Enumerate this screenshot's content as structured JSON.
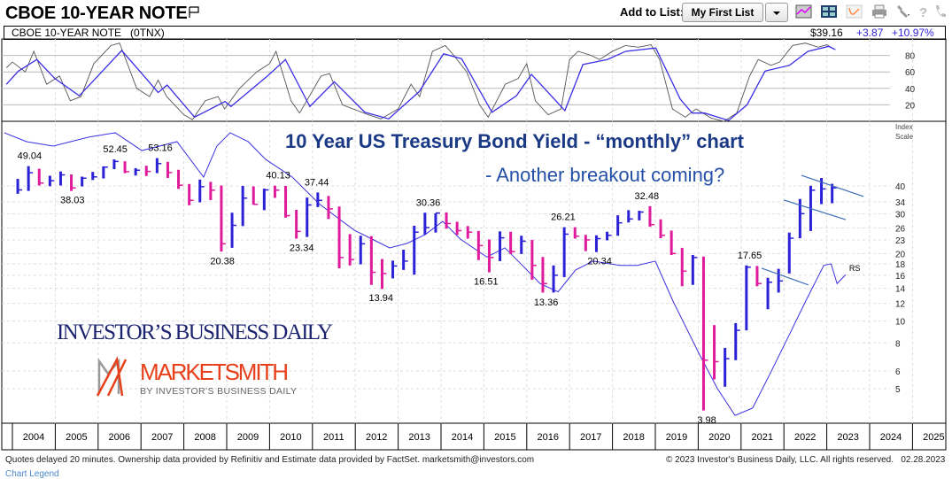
{
  "header": {
    "title": "CBOE 10-YEAR NOTE",
    "add_to_list_label": "Add to List:",
    "list_button": "My First List",
    "toolbar_icons": [
      "chart-icon",
      "layout-grid-icon",
      "indicator-icon",
      "print-icon",
      "wrench-icon",
      "help-icon",
      "phone-icon"
    ]
  },
  "quote": {
    "name": "CBOE 10-YEAR NOTE   (0TNX)",
    "price": "$39.16",
    "change": "+3.87",
    "change_pct": "+10.97%"
  },
  "annotation": {
    "headline": "10 Year US Treasury Bond Yield - “monthly” chart",
    "subline": "- Another breakout coming?"
  },
  "logos": {
    "ibd": "INVESTOR’S BUSINESS DAILY",
    "marketsmith": "MARKETSMITH",
    "marketsmith_tag": "BY INVESTOR’S BUSINESS DAILY"
  },
  "footer": {
    "disclaimer": "Quotes delayed 20 minutes. Ownership data provided by Refinitiv and Estimate data provided by FactSet. marketsmith@investors.com",
    "copyright": "© 2023 Investor's Business Daily, LLC. All rights reserved.   02.28.2023",
    "legend_link": "Chart Legend"
  },
  "colors": {
    "up": "#2b22d8",
    "down": "#e01a9c",
    "rs": "#3a2fe0",
    "osc_fast": "#555555",
    "osc_slow": "#3b2fe6",
    "trendline": "#3d6bb5",
    "title": "#1b3a86"
  },
  "chart_data": {
    "type": "bar",
    "subtype": "ohlc-log",
    "x_ticks": [
      "2004",
      "2005",
      "2006",
      "2007",
      "2008",
      "2009",
      "2010",
      "2011",
      "2012",
      "2013",
      "2014",
      "2015",
      "2016",
      "2017",
      "2018",
      "2019",
      "2020",
      "2021",
      "2022",
      "2023",
      "2024",
      "2025"
    ],
    "y_scale": "log",
    "y_axis_title": [
      "Index",
      "Scale"
    ],
    "y_ticks": [
      40,
      34,
      30,
      26,
      23,
      20,
      18,
      16,
      14,
      12,
      10,
      8,
      6,
      5
    ],
    "grid": true,
    "periods": [
      "2004Q1",
      "2004Q2",
      "2004Q3",
      "2004Q4",
      "2005Q1",
      "2005Q2",
      "2005Q3",
      "2005Q4",
      "2006Q1",
      "2006Q2",
      "2006Q3",
      "2006Q4",
      "2007Q1",
      "2007Q2",
      "2007Q3",
      "2007Q4",
      "2008Q1",
      "2008Q2",
      "2008Q3",
      "2008Q4",
      "2009Q1",
      "2009Q2",
      "2009Q3",
      "2009Q4",
      "2010Q1",
      "2010Q2",
      "2010Q3",
      "2010Q4",
      "2011Q1",
      "2011Q2",
      "2011Q3",
      "2011Q4",
      "2012Q1",
      "2012Q2",
      "2012Q3",
      "2012Q4",
      "2013Q1",
      "2013Q2",
      "2013Q3",
      "2013Q4",
      "2014Q1",
      "2014Q2",
      "2014Q3",
      "2014Q4",
      "2015Q1",
      "2015Q2",
      "2015Q3",
      "2015Q4",
      "2016Q1",
      "2016Q2",
      "2016Q3",
      "2016Q4",
      "2017Q1",
      "2017Q2",
      "2017Q3",
      "2017Q4",
      "2018Q1",
      "2018Q2",
      "2018Q3",
      "2018Q4",
      "2019Q1",
      "2019Q2",
      "2019Q3",
      "2019Q4",
      "2020Q1",
      "2020Q2",
      "2020Q3",
      "2020Q4",
      "2021Q1",
      "2021Q2",
      "2021Q3",
      "2021Q4",
      "2022Q1",
      "2022Q2",
      "2022Q3",
      "2022Q4",
      "2023Q1"
    ],
    "hlc": [
      [
        43.0,
        36.9,
        38.4
      ],
      [
        49.0,
        38.0,
        45.8
      ],
      [
        47.7,
        40.2,
        41.2
      ],
      [
        44.4,
        39.9,
        42.2
      ],
      [
        46.4,
        40.2,
        44.8
      ],
      [
        45.0,
        38.0,
        39.2
      ],
      [
        44.0,
        39.8,
        43.3
      ],
      [
        46.2,
        42.5,
        43.9
      ],
      [
        48.9,
        43.2,
        48.5
      ],
      [
        52.5,
        47.5,
        51.4
      ],
      [
        51.5,
        45.6,
        46.3
      ],
      [
        48.0,
        44.5,
        47.0
      ],
      [
        49.2,
        44.3,
        46.4
      ],
      [
        53.2,
        45.6,
        50.3
      ],
      [
        51.2,
        43.4,
        45.9
      ],
      [
        47.2,
        38.8,
        40.3
      ],
      [
        40.8,
        32.8,
        34.5
      ],
      [
        42.7,
        33.8,
        39.7
      ],
      [
        41.7,
        34.6,
        38.3
      ],
      [
        40.2,
        20.4,
        22.1
      ],
      [
        30.4,
        21.2,
        26.7
      ],
      [
        40.0,
        26.5,
        35.3
      ],
      [
        39.8,
        33.0,
        33.1
      ],
      [
        38.9,
        31.2,
        38.4
      ],
      [
        40.1,
        35.4,
        38.3
      ],
      [
        40.0,
        28.9,
        29.5
      ],
      [
        31.3,
        23.3,
        25.1
      ],
      [
        35.5,
        23.7,
        32.9
      ],
      [
        37.4,
        32.2,
        34.5
      ],
      [
        36.1,
        28.5,
        31.6
      ],
      [
        32.4,
        17.2,
        19.2
      ],
      [
        24.4,
        17.7,
        18.8
      ],
      [
        24.0,
        17.9,
        22.1
      ],
      [
        23.9,
        14.5,
        16.5
      ],
      [
        18.9,
        13.9,
        16.3
      ],
      [
        18.6,
        15.5,
        17.6
      ],
      [
        20.8,
        16.9,
        18.5
      ],
      [
        26.6,
        16.1,
        24.9
      ],
      [
        30.4,
        24.3,
        26.1
      ],
      [
        30.2,
        24.8,
        30.3
      ],
      [
        30.5,
        25.8,
        27.2
      ],
      [
        27.7,
        24.2,
        25.3
      ],
      [
        26.5,
        23.3,
        24.9
      ],
      [
        25.2,
        18.7,
        21.7
      ],
      [
        23.1,
        16.5,
        19.2
      ],
      [
        25.1,
        18.5,
        23.5
      ],
      [
        25.0,
        19.9,
        20.4
      ],
      [
        24.0,
        19.9,
        22.7
      ],
      [
        23.0,
        15.3,
        17.7
      ],
      [
        19.3,
        13.4,
        14.7
      ],
      [
        17.7,
        13.4,
        16.0
      ],
      [
        26.2,
        15.7,
        24.4
      ],
      [
        26.2,
        23.3,
        23.9
      ],
      [
        24.2,
        20.5,
        23.0
      ],
      [
        24.1,
        20.3,
        23.3
      ],
      [
        25.0,
        22.9,
        24.1
      ],
      [
        29.6,
        24.0,
        27.4
      ],
      [
        31.2,
        27.5,
        28.5
      ],
      [
        31.0,
        28.1,
        30.6
      ],
      [
        32.5,
        26.3,
        26.9
      ],
      [
        28.4,
        23.4,
        24.1
      ],
      [
        25.3,
        19.7,
        20.0
      ],
      [
        21.2,
        14.3,
        16.7
      ],
      [
        19.7,
        14.5,
        19.2
      ],
      [
        19.4,
        4.0,
        6.7
      ],
      [
        9.6,
        5.5,
        6.6
      ],
      [
        7.6,
        5.1,
        6.8
      ],
      [
        9.8,
        6.7,
        9.1
      ],
      [
        17.7,
        9.1,
        17.4
      ],
      [
        17.6,
        14.3,
        14.7
      ],
      [
        15.6,
        11.3,
        14.9
      ],
      [
        17.1,
        13.4,
        15.1
      ],
      [
        24.8,
        16.3,
        23.4
      ],
      [
        35.0,
        23.4,
        30.1
      ],
      [
        40.1,
        25.2,
        38.3
      ],
      [
        43.4,
        33.2,
        38.8
      ],
      [
        40.9,
        33.5,
        39.2
      ]
    ],
    "value_labels": [
      {
        "text": "49.04",
        "year": 2004.4,
        "pos": "above"
      },
      {
        "text": "38.03",
        "year": 2005.4,
        "pos": "below"
      },
      {
        "text": "52.45",
        "year": 2006.4,
        "pos": "above"
      },
      {
        "text": "53.16",
        "year": 2007.45,
        "pos": "above"
      },
      {
        "text": "20.38",
        "year": 2008.9,
        "pos": "below"
      },
      {
        "text": "40.13",
        "year": 2010.2,
        "pos": "above"
      },
      {
        "text": "23.34",
        "year": 2010.75,
        "pos": "below"
      },
      {
        "text": "37.44",
        "year": 2011.1,
        "pos": "above"
      },
      {
        "text": "13.94",
        "year": 2012.6,
        "pos": "below"
      },
      {
        "text": "30.36",
        "year": 2013.7,
        "pos": "above"
      },
      {
        "text": "16.51",
        "year": 2015.05,
        "pos": "below"
      },
      {
        "text": "13.36",
        "year": 2016.45,
        "pos": "below"
      },
      {
        "text": "26.21",
        "year": 2016.85,
        "pos": "above"
      },
      {
        "text": "20.34",
        "year": 2017.7,
        "pos": "below"
      },
      {
        "text": "32.48",
        "year": 2018.8,
        "pos": "above"
      },
      {
        "text": "3.98",
        "year": 2020.2,
        "pos": "below"
      },
      {
        "text": "17.65",
        "year": 2021.2,
        "pos": "above"
      }
    ],
    "rs_line": {
      "label": "RS",
      "points": [
        [
          2003.81,
          69
        ],
        [
          2004.33,
          63
        ],
        [
          2004.95,
          60.2
        ],
        [
          2005.78,
          66
        ],
        [
          2006.4,
          69
        ],
        [
          2007.02,
          57.5
        ],
        [
          2007.84,
          63
        ],
        [
          2008.46,
          43.8
        ],
        [
          2008.77,
          60.2
        ],
        [
          2009.08,
          69
        ],
        [
          2009.5,
          63
        ],
        [
          2009.91,
          52.5
        ],
        [
          2010.53,
          43.8
        ],
        [
          2011.15,
          33.4
        ],
        [
          2011.56,
          29.1
        ],
        [
          2011.98,
          25.4
        ],
        [
          2012.39,
          23.2
        ],
        [
          2012.8,
          21.2
        ],
        [
          2013.21,
          22.2
        ],
        [
          2013.63,
          24.3
        ],
        [
          2014.04,
          27.8
        ],
        [
          2014.45,
          23.2
        ],
        [
          2015.07,
          19.3
        ],
        [
          2015.49,
          21.2
        ],
        [
          2015.9,
          17.7
        ],
        [
          2016.31,
          14.7
        ],
        [
          2016.73,
          13.5
        ],
        [
          2017.14,
          16.9
        ],
        [
          2017.55,
          18.5
        ],
        [
          2018.17,
          17.7
        ],
        [
          2018.58,
          17.7
        ],
        [
          2019.0,
          18.5
        ],
        [
          2019.41,
          12.3
        ],
        [
          2020.03,
          7.1
        ],
        [
          2020.45,
          5.0
        ],
        [
          2020.86,
          3.8
        ],
        [
          2021.27,
          4.1
        ],
        [
          2021.69,
          5.9
        ],
        [
          2022.1,
          8.5
        ],
        [
          2022.51,
          12.3
        ],
        [
          2022.93,
          17.7
        ],
        [
          2023.1,
          18.0
        ],
        [
          2023.24,
          14.7
        ],
        [
          2023.44,
          16.1
        ]
      ]
    },
    "trendlines": [
      [
        [
          2022.41,
          44.6
        ],
        [
          2023.86,
          35.9
        ]
      ],
      [
        [
          2022.0,
          34.6
        ],
        [
          2023.44,
          28.3
        ]
      ],
      [
        [
          2021.48,
          17.2
        ],
        [
          2022.57,
          14.5
        ]
      ]
    ],
    "oscillator": {
      "y_ticks": [
        80,
        60,
        40,
        20
      ],
      "ylim": [
        0,
        100
      ],
      "fast": [
        [
          2003.86,
          65
        ],
        [
          2004.0,
          72
        ],
        [
          2004.3,
          60
        ],
        [
          2004.5,
          85
        ],
        [
          2004.8,
          45
        ],
        [
          2005.1,
          55
        ],
        [
          2005.35,
          25
        ],
        [
          2005.6,
          30
        ],
        [
          2005.9,
          70
        ],
        [
          2006.3,
          92
        ],
        [
          2006.5,
          95
        ],
        [
          2006.9,
          40
        ],
        [
          2007.2,
          30
        ],
        [
          2007.4,
          50
        ],
        [
          2007.6,
          30
        ],
        [
          2008.0,
          8
        ],
        [
          2008.2,
          2
        ],
        [
          2008.5,
          25
        ],
        [
          2008.8,
          30
        ],
        [
          2008.95,
          15
        ],
        [
          2009.3,
          40
        ],
        [
          2009.7,
          60
        ],
        [
          2010.0,
          70
        ],
        [
          2010.15,
          85
        ],
        [
          2010.5,
          25
        ],
        [
          2010.7,
          10
        ],
        [
          2011.2,
          55
        ],
        [
          2011.4,
          58
        ],
        [
          2011.7,
          20
        ],
        [
          2012.3,
          8
        ],
        [
          2012.6,
          3
        ],
        [
          2013.0,
          15
        ],
        [
          2013.3,
          45
        ],
        [
          2013.5,
          30
        ],
        [
          2013.8,
          85
        ],
        [
          2014.1,
          92
        ],
        [
          2014.3,
          80
        ],
        [
          2014.6,
          60
        ],
        [
          2014.9,
          20
        ],
        [
          2015.1,
          5
        ],
        [
          2015.5,
          45
        ],
        [
          2015.8,
          52
        ],
        [
          2016.0,
          70
        ],
        [
          2016.2,
          25
        ],
        [
          2016.5,
          8
        ],
        [
          2016.8,
          15
        ],
        [
          2017.0,
          75
        ],
        [
          2017.2,
          85
        ],
        [
          2017.5,
          80
        ],
        [
          2017.7,
          75
        ],
        [
          2018.0,
          85
        ],
        [
          2018.3,
          92
        ],
        [
          2018.6,
          90
        ],
        [
          2018.9,
          93
        ],
        [
          2019.1,
          75
        ],
        [
          2019.4,
          15
        ],
        [
          2019.7,
          5
        ],
        [
          2019.95,
          15
        ],
        [
          2020.3,
          4
        ],
        [
          2020.6,
          0
        ],
        [
          2020.9,
          10
        ],
        [
          2021.2,
          55
        ],
        [
          2021.4,
          75
        ],
        [
          2021.7,
          68
        ],
        [
          2021.9,
          72
        ],
        [
          2022.2,
          92
        ],
        [
          2022.5,
          95
        ],
        [
          2022.8,
          90
        ],
        [
          2023.0,
          93
        ],
        [
          2023.15,
          88
        ]
      ],
      "slow": [
        [
          2003.86,
          45
        ],
        [
          2004.14,
          61
        ],
        [
          2004.57,
          75
        ],
        [
          2004.99,
          52
        ],
        [
          2005.56,
          31
        ],
        [
          2006.12,
          62
        ],
        [
          2006.55,
          86
        ],
        [
          2007.12,
          52
        ],
        [
          2007.4,
          35
        ],
        [
          2007.61,
          44
        ],
        [
          2008.25,
          5
        ],
        [
          2008.96,
          24
        ],
        [
          2009.1,
          18
        ],
        [
          2009.95,
          55
        ],
        [
          2010.37,
          75
        ],
        [
          2010.94,
          18
        ],
        [
          2011.51,
          48
        ],
        [
          2012.22,
          11
        ],
        [
          2012.78,
          3
        ],
        [
          2013.49,
          36
        ],
        [
          2014.06,
          82
        ],
        [
          2014.48,
          76
        ],
        [
          2015.19,
          11
        ],
        [
          2015.76,
          31
        ],
        [
          2016.11,
          57
        ],
        [
          2016.89,
          13
        ],
        [
          2017.31,
          69
        ],
        [
          2017.88,
          75
        ],
        [
          2018.31,
          85
        ],
        [
          2019.01,
          89
        ],
        [
          2019.58,
          27
        ],
        [
          2019.86,
          10
        ],
        [
          2020.15,
          10
        ],
        [
          2020.71,
          1
        ],
        [
          2021.14,
          20
        ],
        [
          2021.56,
          61
        ],
        [
          2022.13,
          68
        ],
        [
          2022.56,
          85
        ],
        [
          2023.05,
          91
        ],
        [
          2023.2,
          87
        ]
      ]
    }
  }
}
